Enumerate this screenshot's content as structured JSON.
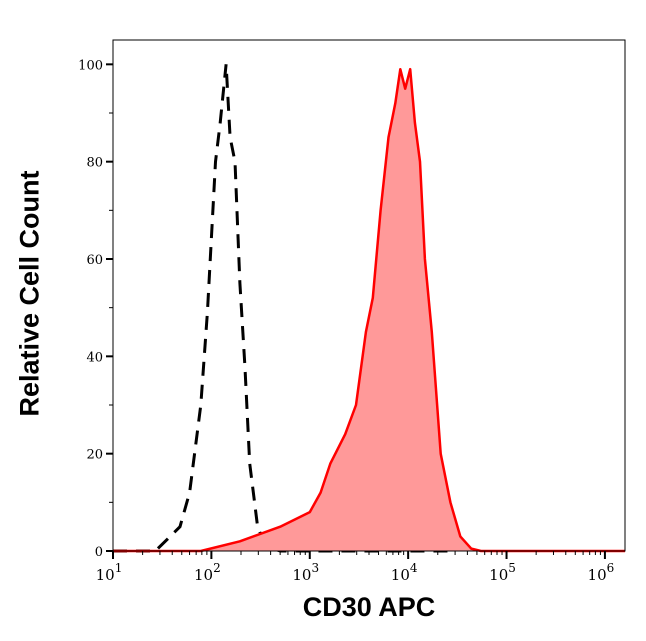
{
  "chart_data": {
    "type": "area",
    "title": "",
    "xlabel": "CD30 APC",
    "ylabel": "Relative Cell Count",
    "x_scale": "log",
    "xlim": [
      10,
      1600000
    ],
    "ylim": [
      0,
      105
    ],
    "x_ticks": [
      10,
      100,
      1000,
      10000,
      100000,
      1000000
    ],
    "x_tick_labels": [
      {
        "base": "10",
        "exp": "1"
      },
      {
        "base": "10",
        "exp": "2"
      },
      {
        "base": "10",
        "exp": "3"
      },
      {
        "base": "10",
        "exp": "4"
      },
      {
        "base": "10",
        "exp": "5"
      },
      {
        "base": "10",
        "exp": "6"
      }
    ],
    "y_ticks": [
      0,
      20,
      40,
      60,
      80,
      100
    ],
    "grid": false,
    "series": [
      {
        "style": "dashed-line",
        "color": "#000000",
        "x": [
          10,
          27,
          48,
          60,
          78,
          91,
          110,
          123,
          141,
          155,
          174,
          195,
          219,
          245,
          295,
          355,
          500,
          1000,
          10000,
          30000
        ],
        "y": [
          0,
          0,
          5,
          12,
          30,
          49,
          80,
          88,
          100,
          85,
          80,
          55,
          38,
          18,
          5,
          1,
          0,
          0,
          0,
          0
        ]
      },
      {
        "style": "filled",
        "color": "#ff0000",
        "fill": "#ff9999",
        "x": [
          10,
          78,
          195,
          500,
          1000,
          1290,
          1620,
          2290,
          2950,
          3720,
          4370,
          5250,
          6310,
          7410,
          8320,
          9330,
          10500,
          11700,
          13200,
          14800,
          17400,
          21400,
          26900,
          33900,
          43700,
          55000,
          1600000
        ],
        "y": [
          0,
          0,
          2,
          5,
          8,
          12,
          18,
          24,
          30,
          45,
          52,
          70,
          85,
          92,
          99,
          95,
          99,
          88,
          80,
          60,
          45,
          20,
          10,
          3,
          0.5,
          0,
          0
        ]
      }
    ]
  }
}
